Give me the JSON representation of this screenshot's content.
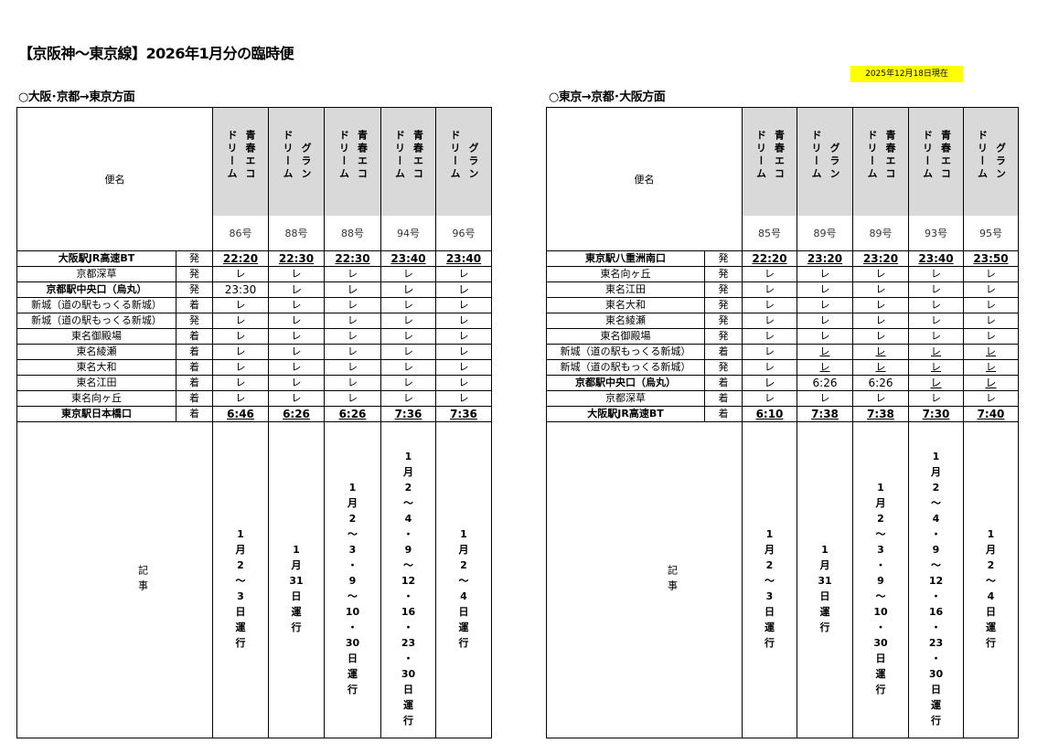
{
  "title": "【京阪神～東京線】2026年1月分の臨時便",
  "as_of": "2025年12月18日現在",
  "colors": {
    "header_bg": "#d9d9d9",
    "as_of_bg": "#ffff00"
  },
  "pass_mark": "レ",
  "tables": [
    {
      "heading": "○大阪･京都→東京方面",
      "name_header": "便名",
      "notes_header": "記事",
      "services": [
        {
          "name_lines": [
            "青春エコ",
            "ドリーム"
          ],
          "number": "86号",
          "note": "1月2～3日運行"
        },
        {
          "name_lines": [
            "グラン",
            "ドリーム"
          ],
          "number": "88号",
          "note": "1月31日運行"
        },
        {
          "name_lines": [
            "青春エコ",
            "ドリーム"
          ],
          "number": "88号",
          "note": "1月2～3・9～10・30日運行"
        },
        {
          "name_lines": [
            "青春エコ",
            "ドリーム"
          ],
          "number": "94号",
          "note": "1月2～4・9～12・16・23・30日運行"
        },
        {
          "name_lines": [
            "グラン",
            "ドリーム"
          ],
          "number": "96号",
          "note": "1月2～4日運行"
        }
      ],
      "rows": [
        {
          "station": "大阪駅JR高速BT",
          "type": "発",
          "bold": true,
          "times": [
            "22:20",
            "22:30",
            "22:30",
            "23:40",
            "23:40"
          ],
          "underline": [
            true,
            true,
            true,
            true,
            true
          ]
        },
        {
          "station": "京都深草",
          "type": "発",
          "bold": false,
          "times": [
            "レ",
            "レ",
            "レ",
            "レ",
            "レ"
          ],
          "underline": [
            false,
            false,
            false,
            false,
            false
          ]
        },
        {
          "station": "京都駅中央口（烏丸）",
          "type": "発",
          "bold": true,
          "times": [
            "23:30",
            "レ",
            "レ",
            "レ",
            "レ"
          ],
          "underline": [
            false,
            false,
            false,
            false,
            false
          ],
          "plain_times": true
        },
        {
          "station": "新城（道の駅もっくる新城）",
          "type": "着",
          "bold": false,
          "times": [
            "レ",
            "レ",
            "レ",
            "レ",
            "レ"
          ],
          "underline": [
            false,
            false,
            false,
            false,
            false
          ]
        },
        {
          "station": "新城（道の駅もっくる新城）",
          "type": "発",
          "bold": false,
          "times": [
            "レ",
            "レ",
            "レ",
            "レ",
            "レ"
          ],
          "underline": [
            false,
            false,
            false,
            false,
            false
          ]
        },
        {
          "station": "東名御殿場",
          "type": "着",
          "bold": false,
          "times": [
            "レ",
            "レ",
            "レ",
            "レ",
            "レ"
          ],
          "underline": [
            false,
            false,
            false,
            false,
            false
          ]
        },
        {
          "station": "東名綾瀬",
          "type": "着",
          "bold": false,
          "times": [
            "レ",
            "レ",
            "レ",
            "レ",
            "レ"
          ],
          "underline": [
            false,
            false,
            false,
            false,
            false
          ]
        },
        {
          "station": "東名大和",
          "type": "着",
          "bold": false,
          "times": [
            "レ",
            "レ",
            "レ",
            "レ",
            "レ"
          ],
          "underline": [
            false,
            false,
            false,
            false,
            false
          ]
        },
        {
          "station": "東名江田",
          "type": "着",
          "bold": false,
          "times": [
            "レ",
            "レ",
            "レ",
            "レ",
            "レ"
          ],
          "underline": [
            false,
            false,
            false,
            false,
            false
          ]
        },
        {
          "station": "東名向ヶ丘",
          "type": "着",
          "bold": false,
          "times": [
            "レ",
            "レ",
            "レ",
            "レ",
            "レ"
          ],
          "underline": [
            false,
            false,
            false,
            false,
            false
          ]
        },
        {
          "station": "東京駅日本橋口",
          "type": "着",
          "bold": true,
          "times": [
            "6:46",
            "6:26",
            "6:26",
            "7:36",
            "7:36"
          ],
          "underline": [
            true,
            true,
            true,
            true,
            true
          ]
        }
      ]
    },
    {
      "heading": "○東京→京都･大阪方面",
      "name_header": "便名",
      "notes_header": "記事",
      "services": [
        {
          "name_lines": [
            "青春エコ",
            "ドリーム"
          ],
          "number": "85号",
          "note": "1月2～3日運行"
        },
        {
          "name_lines": [
            "グラン",
            "ドリーム"
          ],
          "number": "89号",
          "note": "1月31日運行"
        },
        {
          "name_lines": [
            "青春エコ",
            "ドリーム"
          ],
          "number": "89号",
          "note": "1月2～3・9～10・30日運行"
        },
        {
          "name_lines": [
            "青春エコ",
            "ドリーム"
          ],
          "number": "93号",
          "note": "1月2～4・9～12・16・23・30日運行"
        },
        {
          "name_lines": [
            "グラン",
            "ドリーム"
          ],
          "number": "95号",
          "note": "1月2～4日運行"
        }
      ],
      "rows": [
        {
          "station": "東京駅八重洲南口",
          "type": "発",
          "bold": true,
          "times": [
            "22:20",
            "23:20",
            "23:20",
            "23:40",
            "23:50"
          ],
          "underline": [
            true,
            true,
            true,
            true,
            true
          ]
        },
        {
          "station": "東名向ヶ丘",
          "type": "発",
          "bold": false,
          "times": [
            "レ",
            "レ",
            "レ",
            "レ",
            "レ"
          ],
          "underline": [
            false,
            false,
            false,
            false,
            false
          ]
        },
        {
          "station": "東名江田",
          "type": "発",
          "bold": false,
          "times": [
            "レ",
            "レ",
            "レ",
            "レ",
            "レ"
          ],
          "underline": [
            false,
            false,
            false,
            false,
            false
          ]
        },
        {
          "station": "東名大和",
          "type": "発",
          "bold": false,
          "times": [
            "レ",
            "レ",
            "レ",
            "レ",
            "レ"
          ],
          "underline": [
            false,
            false,
            false,
            false,
            false
          ]
        },
        {
          "station": "東名綾瀬",
          "type": "発",
          "bold": false,
          "times": [
            "レ",
            "レ",
            "レ",
            "レ",
            "レ"
          ],
          "underline": [
            false,
            false,
            false,
            false,
            false
          ]
        },
        {
          "station": "東名御殿場",
          "type": "発",
          "bold": false,
          "times": [
            "レ",
            "レ",
            "レ",
            "レ",
            "レ"
          ],
          "underline": [
            false,
            false,
            false,
            false,
            false
          ]
        },
        {
          "station": "新城（道の駅もっくる新城）",
          "type": "着",
          "bold": false,
          "times": [
            "レ",
            "レ",
            "レ",
            "レ",
            "レ"
          ],
          "underline": [
            false,
            true,
            true,
            true,
            true
          ]
        },
        {
          "station": "新城（道の駅もっくる新城）",
          "type": "発",
          "bold": false,
          "times": [
            "レ",
            "レ",
            "レ",
            "レ",
            "レ"
          ],
          "underline": [
            false,
            true,
            true,
            true,
            true
          ]
        },
        {
          "station": "京都駅中央口（烏丸）",
          "type": "着",
          "bold": true,
          "times": [
            "レ",
            "6:26",
            "6:26",
            "レ",
            "レ"
          ],
          "underline": [
            false,
            false,
            false,
            true,
            true
          ],
          "plain_times": true
        },
        {
          "station": "京都深草",
          "type": "着",
          "bold": false,
          "times": [
            "レ",
            "レ",
            "レ",
            "レ",
            "レ"
          ],
          "underline": [
            false,
            false,
            false,
            false,
            false
          ]
        },
        {
          "station": "大阪駅JR高速BT",
          "type": "着",
          "bold": true,
          "times": [
            "6:10",
            "7:38",
            "7:38",
            "7:30",
            "7:40"
          ],
          "underline": [
            true,
            true,
            true,
            true,
            true
          ]
        }
      ]
    }
  ]
}
